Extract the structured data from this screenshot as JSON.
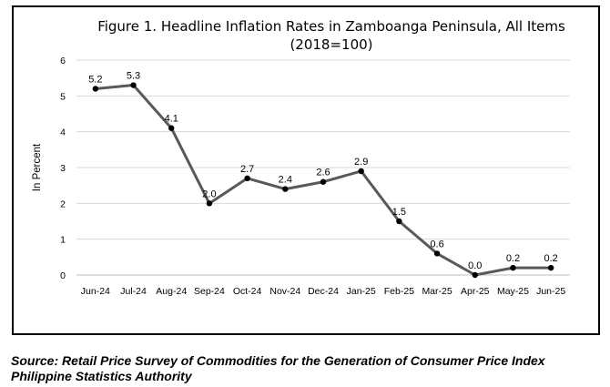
{
  "chart_data": {
    "type": "line",
    "title": "Figure 1. Headline Inflation Rates in Zamboanga Peninsula, All Items",
    "subtitle": "(2018=100)",
    "xlabel": "",
    "ylabel": "In Percent",
    "ylim": [
      0,
      6
    ],
    "yticks": [
      0,
      1,
      2,
      3,
      4,
      5,
      6
    ],
    "grid": true,
    "categories": [
      "Jun-24",
      "Jul-24",
      "Aug-24",
      "Sep-24",
      "Oct-24",
      "Nov-24",
      "Dec-24",
      "Jan-25",
      "Feb-25",
      "Mar-25",
      "Apr-25",
      "May-25",
      "Jun-25"
    ],
    "values": [
      5.2,
      5.3,
      4.1,
      2.0,
      2.7,
      2.4,
      2.6,
      2.9,
      1.5,
      0.6,
      0.0,
      0.2,
      0.2
    ],
    "data_labels": [
      "5.2",
      "5.3",
      "4.1",
      "2.0",
      "2.7",
      "2.4",
      "2.6",
      "2.9",
      "1.5",
      "0.6",
      "0.0",
      "0.2",
      "0.2"
    ],
    "line_color": "#595959",
    "marker_color": "#000000",
    "grid_color": "#d9d9d9"
  },
  "source": {
    "line1": "Source: Retail Price Survey of Commodities for the Generation of Consumer Price Index",
    "line2": "Philippine Statistics Authority"
  }
}
